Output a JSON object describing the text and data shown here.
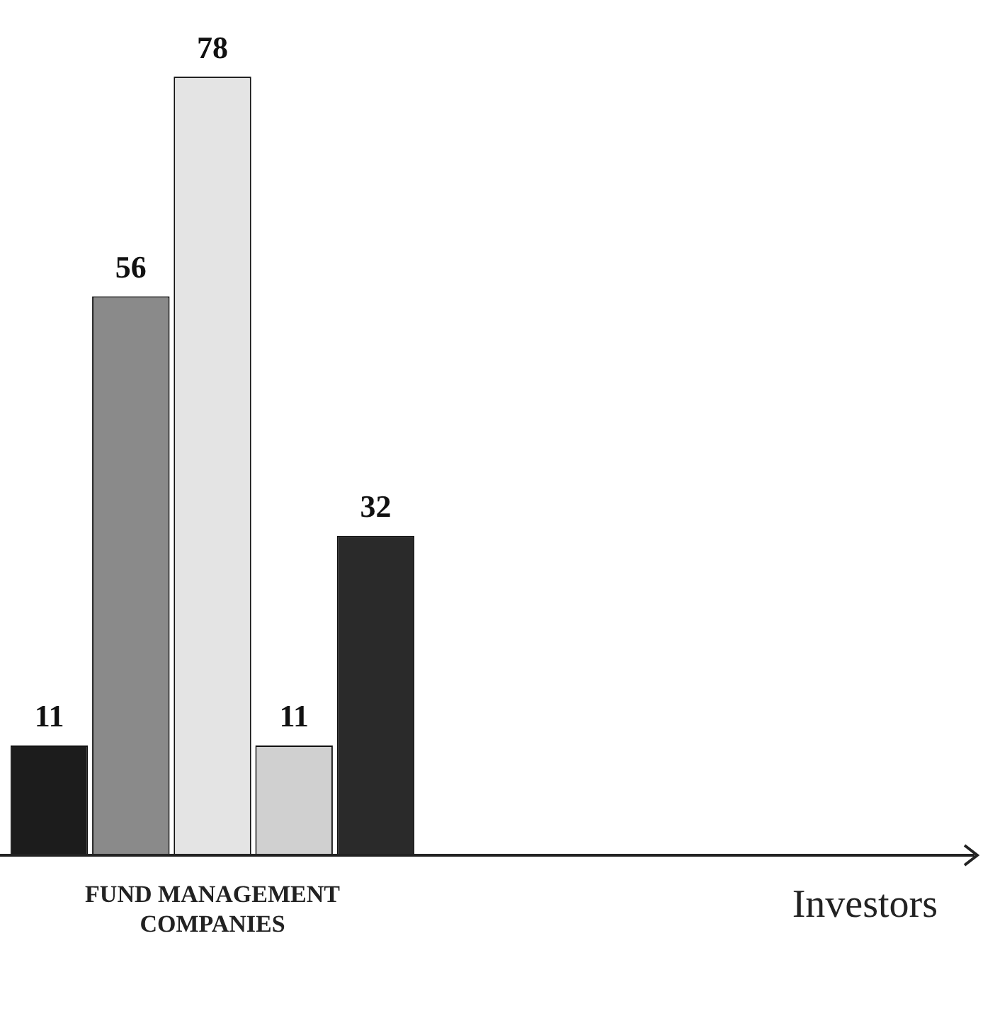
{
  "chart_data": {
    "type": "bar",
    "annotations": [
      "FUND MANAGEMENT COMPANIES",
      "Investors"
    ],
    "categories": [
      null,
      null,
      null,
      null,
      null
    ],
    "values": [
      11,
      56,
      78,
      11,
      32
    ],
    "colors": [
      "#1c1c1c",
      "#8a8a8a",
      "#e4e4e4",
      "#d0d0d0",
      "#2a2a2a"
    ],
    "data_labels": true,
    "tick_labels": false
  }
}
